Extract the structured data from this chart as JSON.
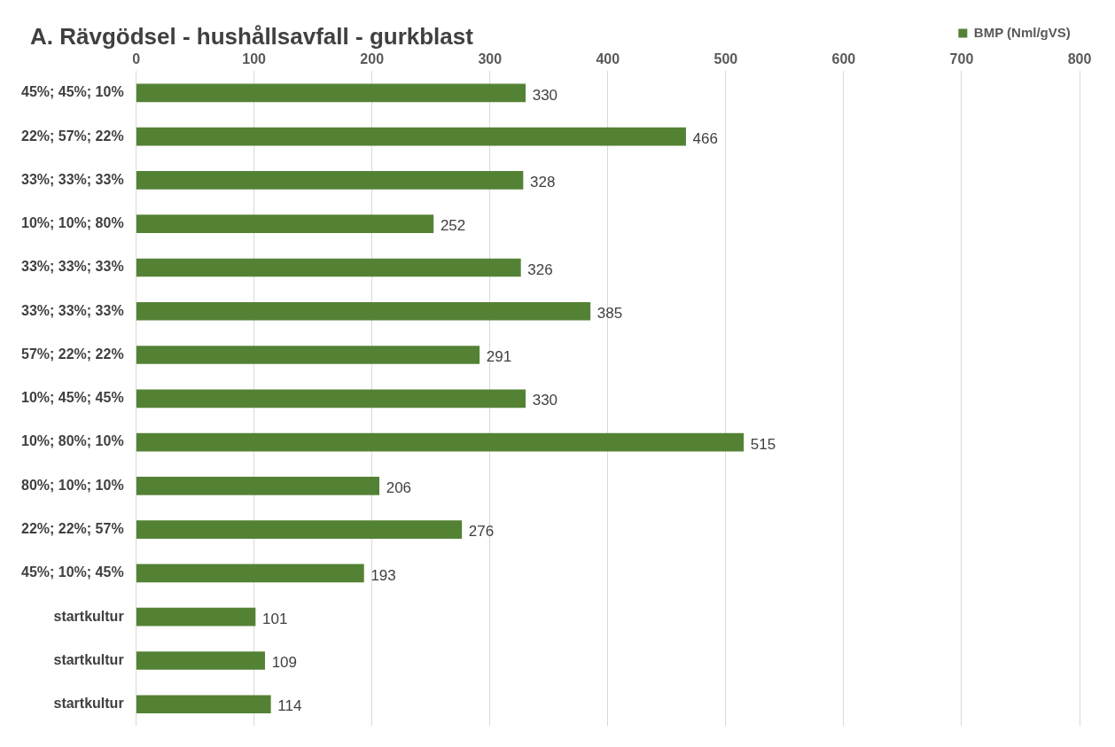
{
  "chart_data": {
    "type": "bar",
    "orientation": "horizontal",
    "title": "A.  Rävgödsel - hushållsavfall - gurkblast",
    "categories": [
      "45%; 45%; 10%",
      "22%; 57%; 22%",
      "33%; 33%; 33%",
      "10%; 10%; 80%",
      "33%; 33%; 33%",
      "33%; 33%; 33%",
      "57%; 22%; 22%",
      "10%; 45%; 45%",
      "10%; 80%; 10%",
      "80%; 10%; 10%",
      "22%; 22%; 57%",
      "45%; 10%; 45%",
      "startkultur",
      "startkultur",
      "startkultur"
    ],
    "series": [
      {
        "name": "BMP (Nml/gVS)",
        "color": "#548235",
        "values": [
          330,
          466,
          328,
          252,
          326,
          385,
          291,
          330,
          515,
          206,
          276,
          193,
          101,
          109,
          114
        ]
      }
    ],
    "xlim": [
      0,
      800
    ],
    "xticks": [
      0,
      100,
      200,
      300,
      400,
      500,
      600,
      700,
      800
    ],
    "grid": "x",
    "legend": "top right",
    "data_labels": true
  }
}
